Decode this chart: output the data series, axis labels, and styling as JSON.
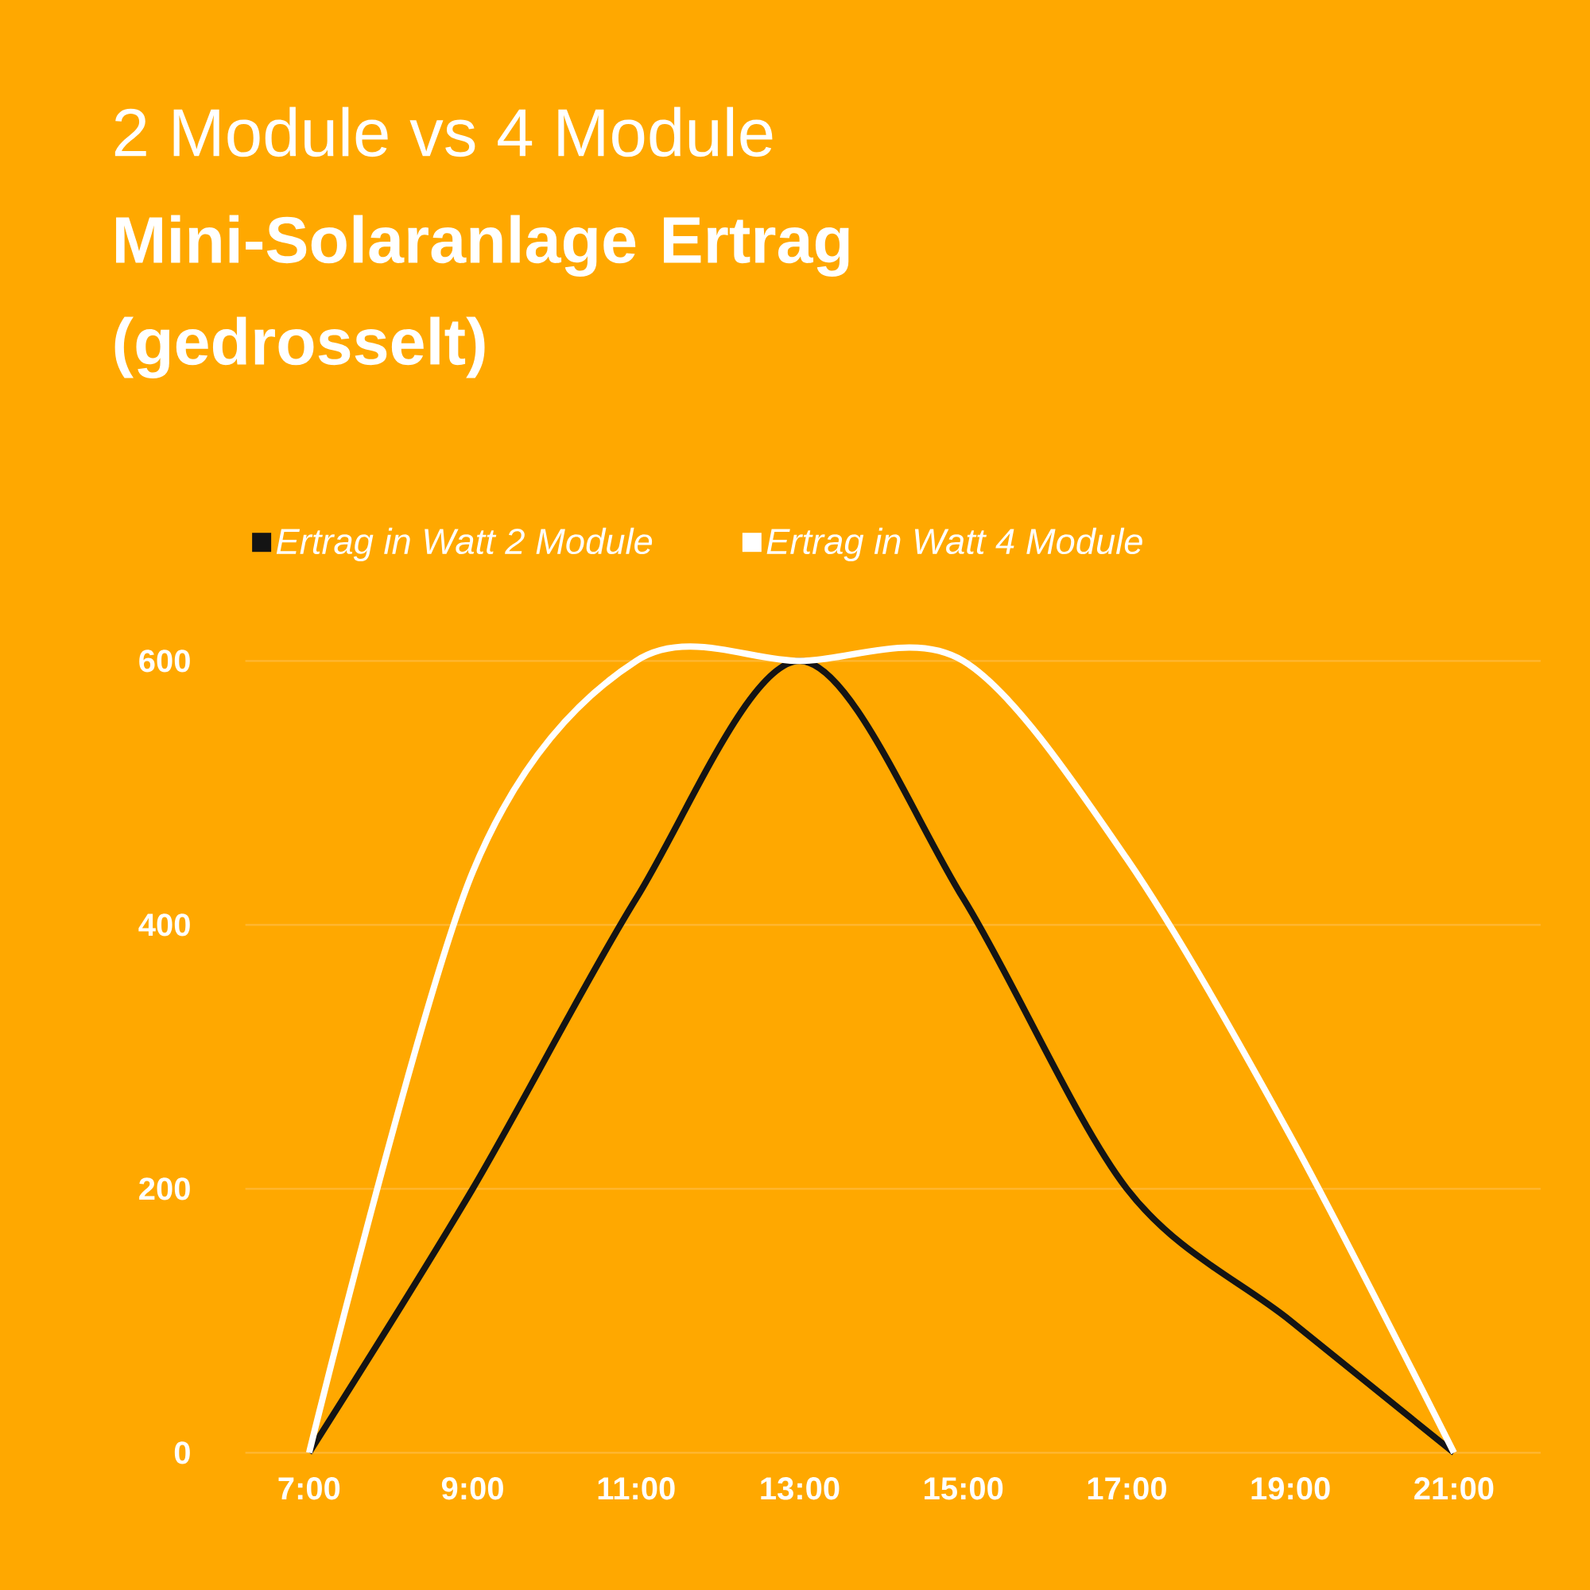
{
  "chart_data": {
    "type": "line",
    "subtitle": "2 Module vs 4 Module",
    "title": "Mini-Solaranlage Ertrag (gedrosselt)",
    "categories": [
      "7:00",
      "9:00",
      "11:00",
      "13:00",
      "15:00",
      "17:00",
      "19:00",
      "21:00"
    ],
    "series": [
      {
        "name": "*Ertrag in Watt 2 Module*",
        "color": "#141414",
        "values": [
          0,
          200,
          420,
          600,
          420,
          200,
          100,
          0
        ]
      },
      {
        "name": "*Ertrag in Watt 4 Module*",
        "color": "#ffffff",
        "values": [
          0,
          440,
          600,
          600,
          600,
          450,
          240,
          0
        ]
      }
    ],
    "ylim": [
      0,
      600
    ],
    "yticks": [
      0,
      200,
      400,
      600
    ],
    "grid": "y",
    "legend": "top left",
    "marker": "none",
    "line_style": "solid"
  }
}
